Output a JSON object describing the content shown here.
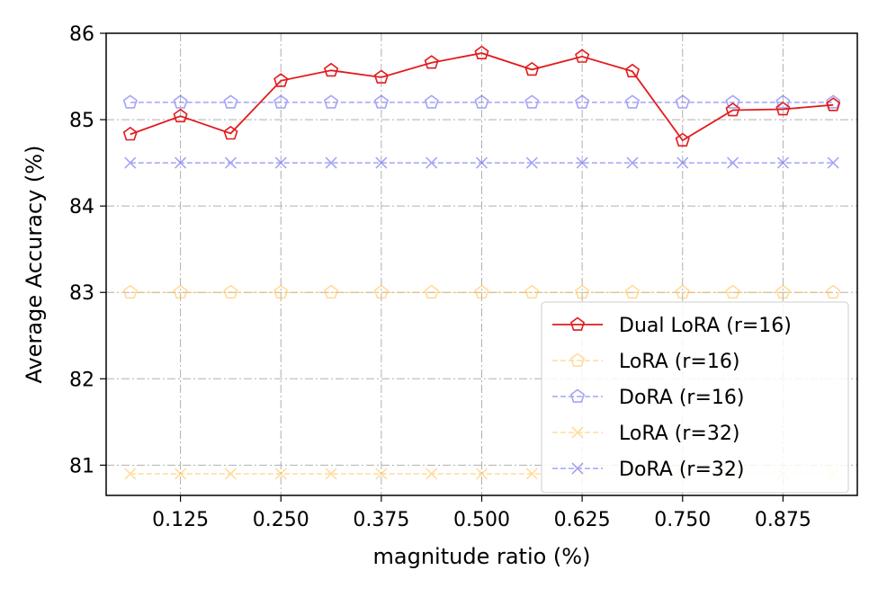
{
  "chart_data": {
    "type": "line",
    "title": "",
    "xlabel": "magnitude ratio (%)",
    "ylabel": "Average Accuracy (%)",
    "xlim": [
      0.0325,
      0.9675
    ],
    "ylim": [
      80.65,
      86.0
    ],
    "grid": true,
    "legend_position": "lower-right",
    "x_ticks": [
      {
        "value": 0.125,
        "label": "0.125"
      },
      {
        "value": 0.25,
        "label": "0.250"
      },
      {
        "value": 0.375,
        "label": "0.375"
      },
      {
        "value": 0.5,
        "label": "0.500"
      },
      {
        "value": 0.625,
        "label": "0.625"
      },
      {
        "value": 0.75,
        "label": "0.750"
      },
      {
        "value": 0.875,
        "label": "0.875"
      }
    ],
    "y_ticks": [
      {
        "value": 81,
        "label": "81"
      },
      {
        "value": 82,
        "label": "82"
      },
      {
        "value": 83,
        "label": "83"
      },
      {
        "value": 84,
        "label": "84"
      },
      {
        "value": 85,
        "label": "85"
      },
      {
        "value": 86,
        "label": "86"
      }
    ],
    "x": [
      0.0625,
      0.125,
      0.1875,
      0.25,
      0.3125,
      0.375,
      0.4375,
      0.5,
      0.5625,
      0.625,
      0.6875,
      0.75,
      0.8125,
      0.875,
      0.9375
    ],
    "series": [
      {
        "name": "Dual LoRA (r=16)",
        "values": [
          84.83,
          85.04,
          84.84,
          85.45,
          85.57,
          85.49,
          85.66,
          85.77,
          85.58,
          85.73,
          85.56,
          84.76,
          85.11,
          85.12,
          85.17
        ],
        "color": "#e31a1c",
        "marker": "pentagon",
        "line_style": "solid",
        "alpha": 1.0
      },
      {
        "name": "LoRA (r=16)",
        "values": [
          83.0,
          83.0,
          83.0,
          83.0,
          83.0,
          83.0,
          83.0,
          83.0,
          83.0,
          83.0,
          83.0,
          83.0,
          83.0,
          83.0,
          83.0
        ],
        "color": "#ffc04d",
        "marker": "pentagon",
        "line_style": "dashed",
        "alpha": 0.55
      },
      {
        "name": "DoRA (r=16)",
        "values": [
          85.2,
          85.2,
          85.2,
          85.2,
          85.2,
          85.2,
          85.2,
          85.2,
          85.2,
          85.2,
          85.2,
          85.2,
          85.2,
          85.2,
          85.2
        ],
        "color": "#5a5af0",
        "marker": "pentagon",
        "line_style": "dashed",
        "alpha": 0.55
      },
      {
        "name": "LoRA (r=32)",
        "values": [
          80.9,
          80.9,
          80.9,
          80.9,
          80.9,
          80.9,
          80.9,
          80.9,
          80.9,
          80.9,
          80.9,
          80.9,
          80.9,
          80.9,
          80.9
        ],
        "color": "#ffc04d",
        "marker": "x",
        "line_style": "dashed",
        "alpha": 0.55
      },
      {
        "name": "DoRA (r=32)",
        "values": [
          84.5,
          84.5,
          84.5,
          84.5,
          84.5,
          84.5,
          84.5,
          84.5,
          84.5,
          84.5,
          84.5,
          84.5,
          84.5,
          84.5,
          84.5
        ],
        "color": "#5a5af0",
        "marker": "x",
        "line_style": "dashed",
        "alpha": 0.55
      }
    ],
    "legend_order": [
      0,
      1,
      2,
      3,
      4
    ]
  }
}
